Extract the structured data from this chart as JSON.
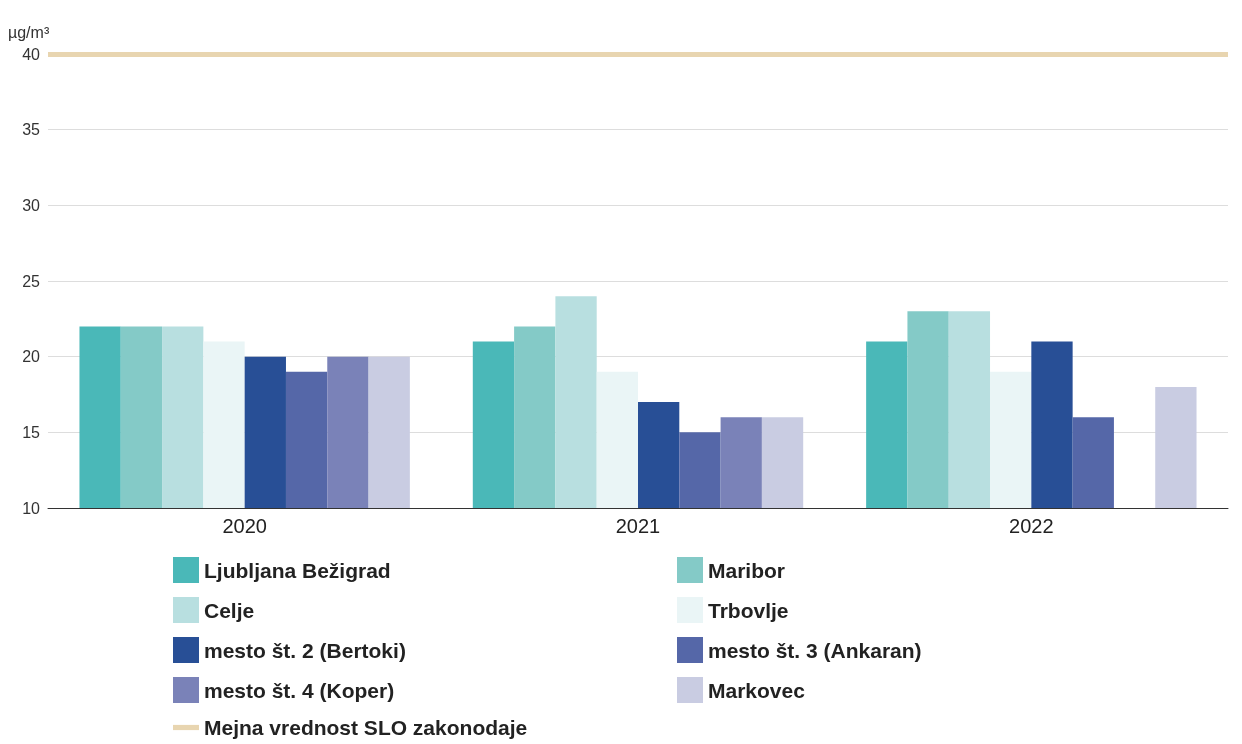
{
  "chart_data": {
    "type": "bar",
    "ylabel": "µg/m³",
    "categories": [
      "2020",
      "2021",
      "2022"
    ],
    "series": [
      {
        "name": "Ljubljana Bežigrad",
        "color": "#4ab8b8",
        "values": [
          22,
          21,
          21
        ]
      },
      {
        "name": "Maribor",
        "color": "#84cac7",
        "values": [
          22,
          22,
          23
        ]
      },
      {
        "name": "Celje",
        "color": "#b8dfe0",
        "values": [
          22,
          24,
          23
        ]
      },
      {
        "name": "Trbovlje",
        "color": "#eaf5f6",
        "values": [
          21,
          19,
          19
        ]
      },
      {
        "name": "mesto št. 2 (Bertoki)",
        "color": "#284f96",
        "values": [
          20,
          17,
          21
        ]
      },
      {
        "name": "mesto št. 3 (Ankaran)",
        "color": "#5567a8",
        "values": [
          19,
          15,
          16
        ]
      },
      {
        "name": "mesto št. 4 (Koper)",
        "color": "#7a82b8",
        "values": [
          20,
          16,
          null
        ]
      },
      {
        "name": "Markovec",
        "color": "#c9cce2",
        "values": [
          20,
          16,
          18
        ]
      }
    ],
    "ylim": [
      10,
      40
    ],
    "yticks": [
      10,
      15,
      20,
      25,
      30,
      35,
      40
    ],
    "grid": "y",
    "legend": "bottom",
    "ref_lines": [
      {
        "axis": "y",
        "value": 40,
        "label": "Mejna vrednost SLO zakonodaje",
        "color": "#e8d5b0"
      }
    ]
  }
}
